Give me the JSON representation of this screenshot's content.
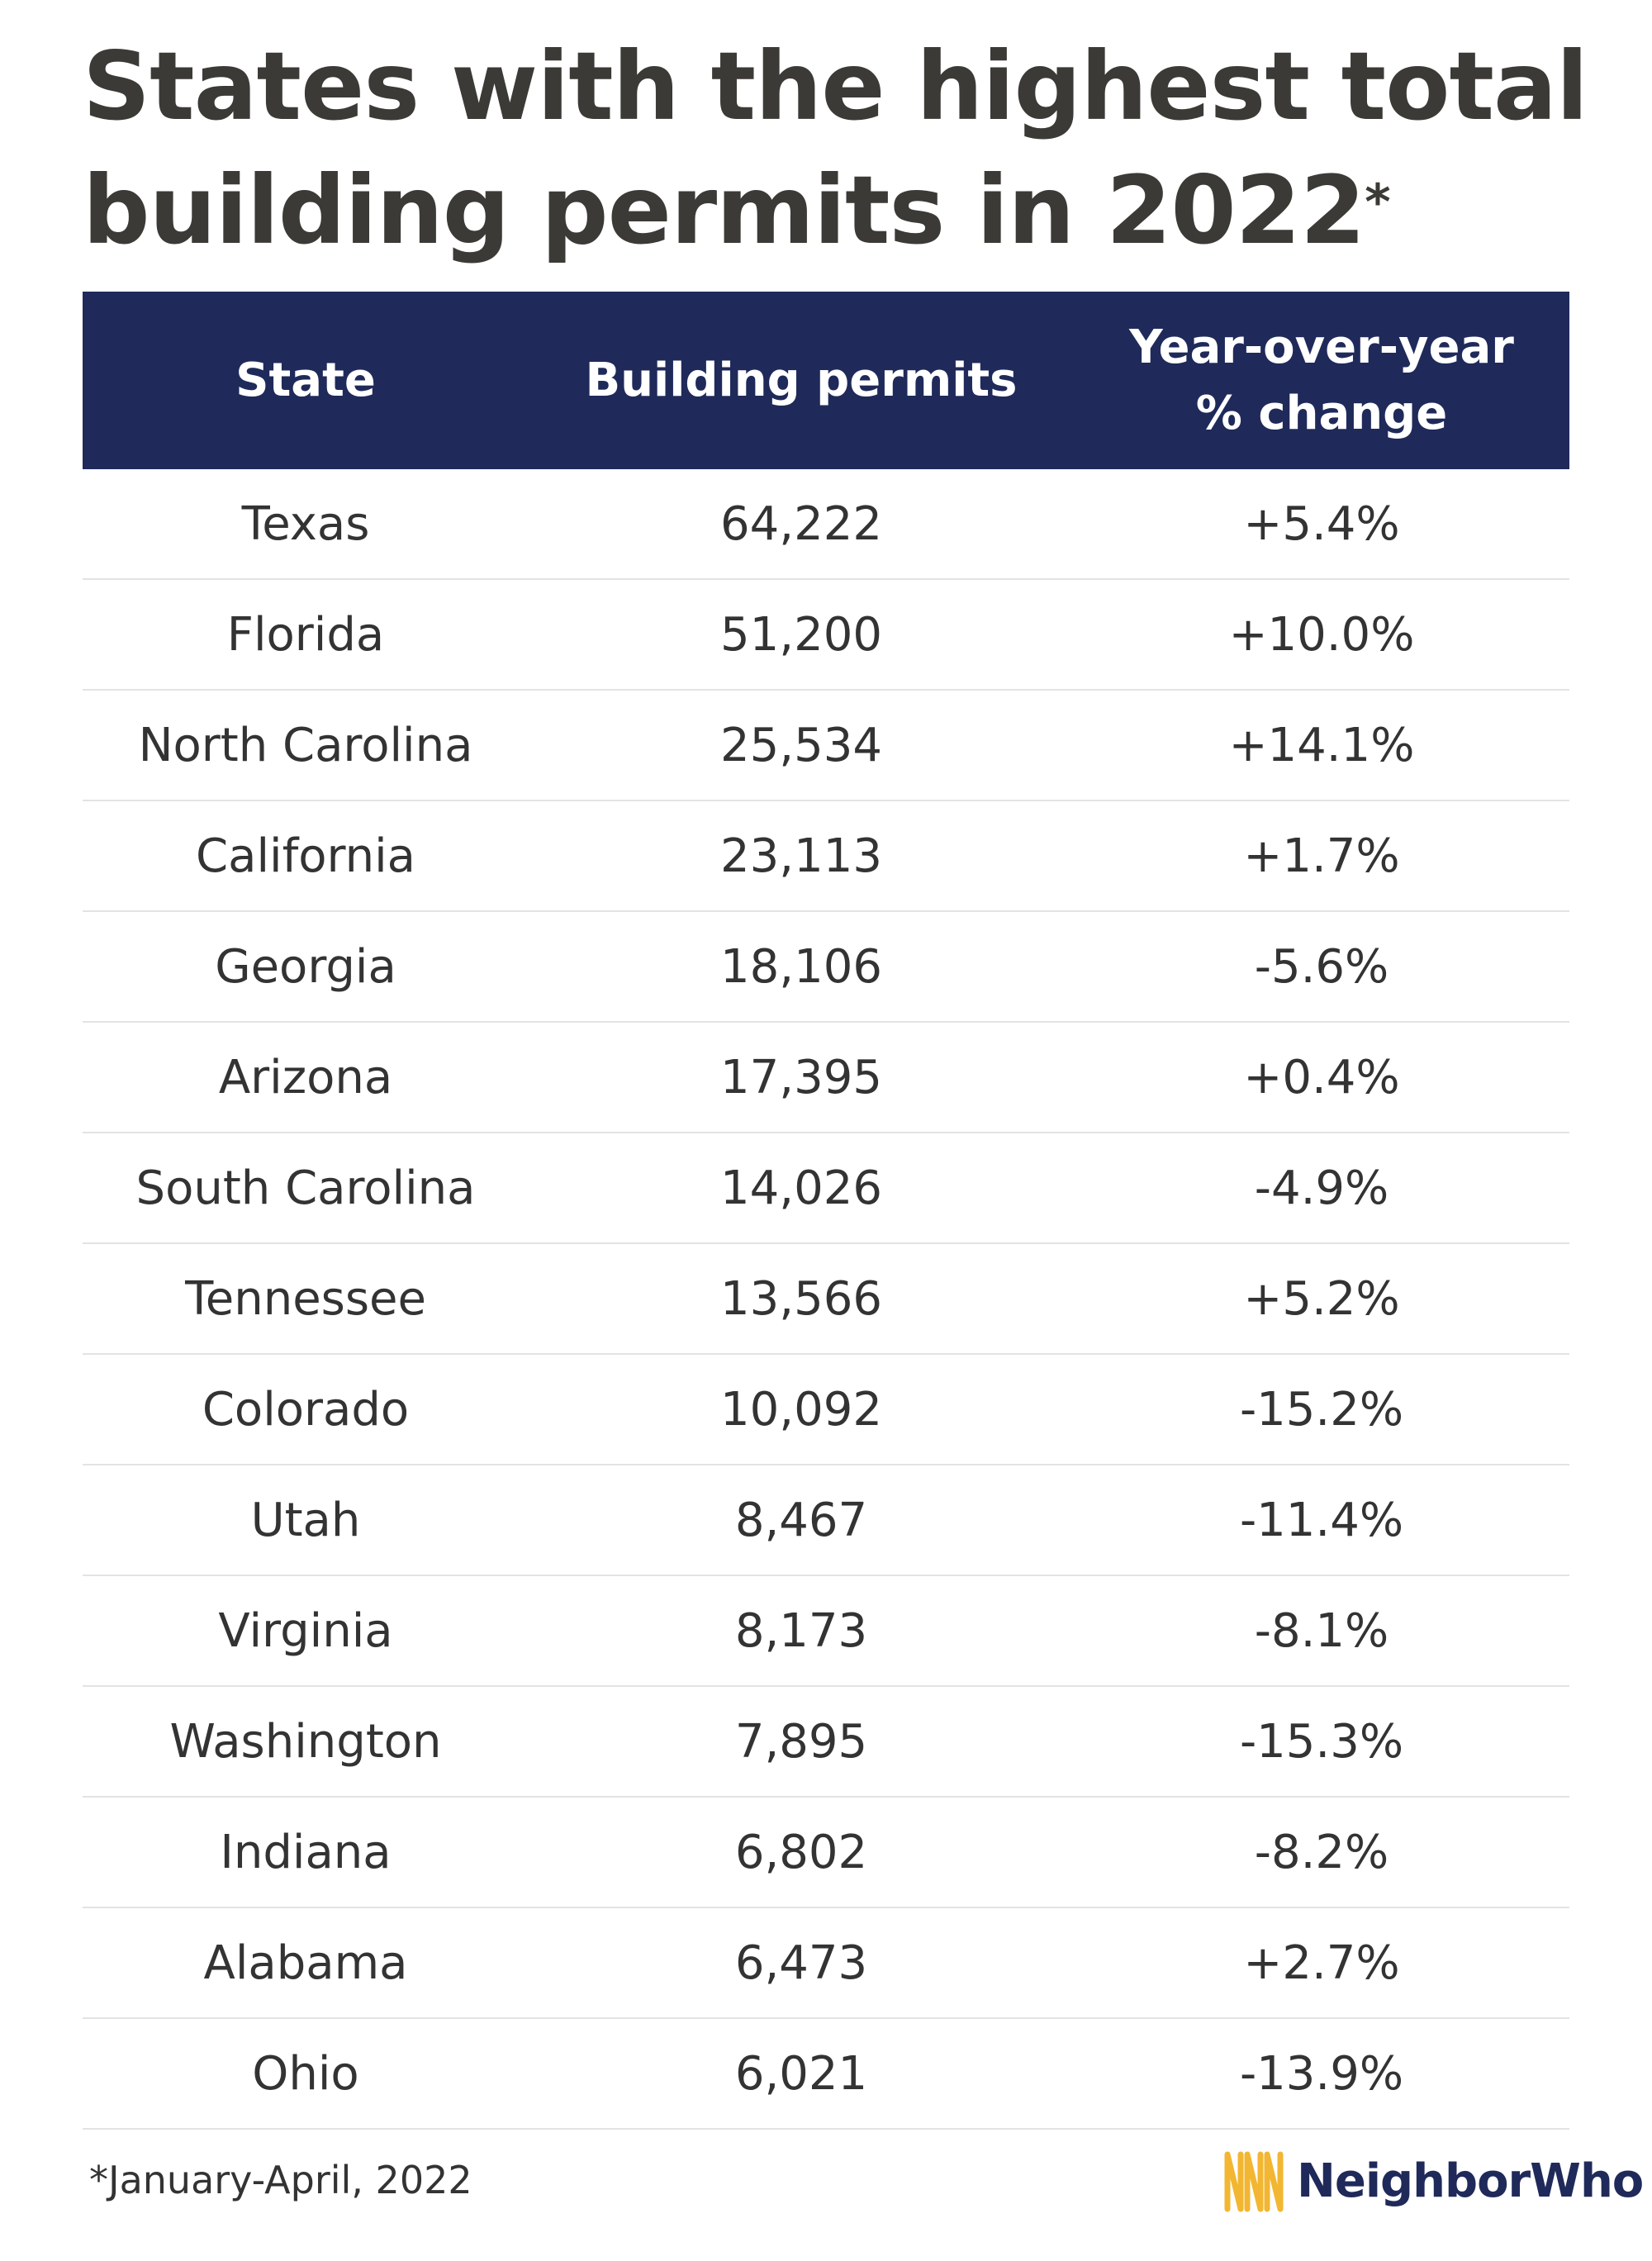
{
  "title_line1": "States with the highest total",
  "title_line2": "building permits in 2022",
  "title_asterisk": "*",
  "chart_data": {
    "type": "table",
    "columns": [
      "State",
      "Building permits",
      "Year-over-year % change"
    ],
    "header": {
      "state": "State",
      "permits": "Building permits",
      "yoy_line1": "Year-over-year",
      "yoy_line2": "% change"
    },
    "rows": [
      {
        "state": "Texas",
        "permits": "64,222",
        "yoy": "+5.4%"
      },
      {
        "state": "Florida",
        "permits": "51,200",
        "yoy": "+10.0%"
      },
      {
        "state": "North Carolina",
        "permits": "25,534",
        "yoy": "+14.1%"
      },
      {
        "state": "California",
        "permits": "23,113",
        "yoy": "+1.7%"
      },
      {
        "state": "Georgia",
        "permits": "18,106",
        "yoy": "-5.6%"
      },
      {
        "state": "Arizona",
        "permits": "17,395",
        "yoy": "+0.4%"
      },
      {
        "state": "South Carolina",
        "permits": "14,026",
        "yoy": "-4.9%"
      },
      {
        "state": "Tennessee",
        "permits": "13,566",
        "yoy": "+5.2%"
      },
      {
        "state": "Colorado",
        "permits": "10,092",
        "yoy": "-15.2%"
      },
      {
        "state": "Utah",
        "permits": "8,467",
        "yoy": "-11.4%"
      },
      {
        "state": "Virginia",
        "permits": "8,173",
        "yoy": "-8.1%"
      },
      {
        "state": "Washington",
        "permits": "7,895",
        "yoy": "-15.3%"
      },
      {
        "state": "Indiana",
        "permits": "6,802",
        "yoy": "-8.2%"
      },
      {
        "state": "Alabama",
        "permits": "6,473",
        "yoy": "+2.7%"
      },
      {
        "state": "Ohio",
        "permits": "6,021",
        "yoy": "-13.9%"
      }
    ]
  },
  "footnote": "*January-April, 2022",
  "logo_text": "NeighborWho",
  "colors": {
    "header_bg": "#1f2a5a",
    "title_text": "#3b3a36",
    "logo_gold": "#f2b632",
    "logo_navy": "#1f2a5a"
  }
}
